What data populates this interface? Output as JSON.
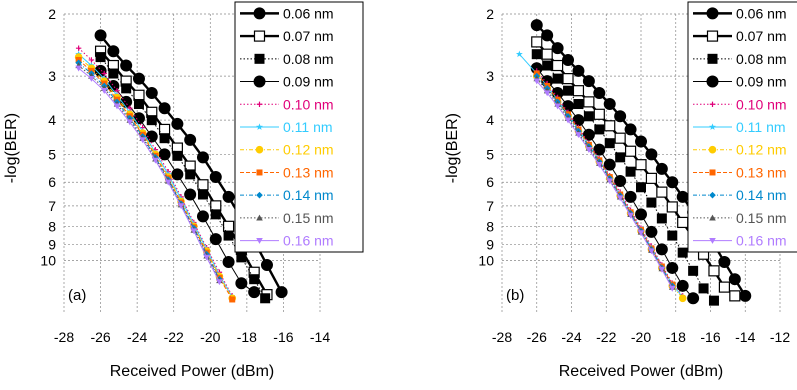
{
  "chart_data": [
    {
      "type": "line",
      "panel_label": "(a)",
      "xlabel": "Received Power (dBm)",
      "ylabel": "-log(BER)",
      "xlim": [
        -28,
        -14
      ],
      "x_ticks": [
        -28,
        -26,
        -24,
        -22,
        -20,
        -18,
        -16,
        -14
      ],
      "y_ticks": [
        2,
        3,
        4,
        5,
        6,
        7,
        8,
        9,
        10
      ],
      "y_scale": "log(-log(BER)), inverted",
      "ylim": [
        2,
        14
      ],
      "grid": true,
      "legend_position": "top-right",
      "series": [
        {
          "name": "0.06 nm",
          "color": "#000000",
          "marker": "circle-filled",
          "line": "solid-bold",
          "x": [
            -26,
            -25.3,
            -24.6,
            -23.9,
            -23.2,
            -22.5,
            -21.8,
            -21.1,
            -20.4,
            -19.7,
            -19.0,
            -18.3,
            -17.6,
            -16.9,
            -16.1
          ],
          "y": [
            2.3,
            2.55,
            2.8,
            3.05,
            3.35,
            3.7,
            4.1,
            4.55,
            5.1,
            5.8,
            6.6,
            7.6,
            8.8,
            10.3,
            12.3
          ]
        },
        {
          "name": "0.07 nm",
          "color": "#000000",
          "marker": "square-open",
          "line": "solid-bold",
          "x": [
            -26,
            -25.3,
            -24.6,
            -23.9,
            -23.2,
            -22.5,
            -21.8,
            -21.1,
            -20.4,
            -19.7,
            -19.0,
            -18.3,
            -17.6,
            -16.9
          ],
          "y": [
            2.55,
            2.8,
            3.1,
            3.4,
            3.8,
            4.25,
            4.8,
            5.4,
            6.1,
            7.0,
            8.0,
            9.3,
            10.8,
            12.5
          ]
        },
        {
          "name": "0.08 nm",
          "color": "#000000",
          "marker": "square-filled",
          "line": "dotted",
          "x": [
            -26,
            -25.3,
            -24.6,
            -23.9,
            -23.2,
            -22.5,
            -21.8,
            -21.1,
            -20.4,
            -19.7,
            -19.0,
            -18.3,
            -17.6,
            -17.0
          ],
          "y": [
            2.65,
            2.95,
            3.25,
            3.6,
            4.0,
            4.5,
            5.05,
            5.7,
            6.5,
            7.4,
            8.5,
            9.8,
            11.3,
            12.8
          ]
        },
        {
          "name": "0.09 nm",
          "color": "#000000",
          "marker": "circle-filled",
          "line": "solid-thin",
          "x": [
            -26,
            -25.3,
            -24.6,
            -23.9,
            -23.2,
            -22.5,
            -21.8,
            -21.1,
            -20.4,
            -19.7,
            -19.0,
            -18.3,
            -17.6
          ],
          "y": [
            2.9,
            3.2,
            3.55,
            3.95,
            4.45,
            5.0,
            5.7,
            6.5,
            7.5,
            8.7,
            10.1,
            11.6,
            12.3
          ]
        },
        {
          "name": "0.10 nm",
          "color": "#e0007a",
          "marker": "plus",
          "line": "dotted",
          "x": [
            -27.2,
            -26.5,
            -25.8,
            -25.1,
            -24.4,
            -23.7,
            -23.0,
            -22.3,
            -21.6,
            -20.9,
            -20.2,
            -19.5,
            -18.8
          ],
          "y": [
            2.5,
            2.7,
            2.95,
            3.3,
            3.7,
            4.2,
            4.85,
            5.6,
            6.6,
            7.8,
            9.2,
            10.8,
            12.6
          ]
        },
        {
          "name": "0.11 nm",
          "color": "#33ccff",
          "marker": "star",
          "line": "solid-thin",
          "x": [
            -27.2,
            -26.5,
            -25.8,
            -25.1,
            -24.4,
            -23.7,
            -23.0,
            -22.3,
            -21.6,
            -20.9,
            -20.2,
            -19.5,
            -18.8
          ],
          "y": [
            2.6,
            2.8,
            3.05,
            3.4,
            3.8,
            4.3,
            4.95,
            5.7,
            6.7,
            7.9,
            9.3,
            11.0,
            12.7
          ]
        },
        {
          "name": "0.12 nm",
          "color": "#ffcc00",
          "marker": "circle-filled",
          "line": "dashdot",
          "x": [
            -27.2,
            -26.5,
            -25.8,
            -25.1,
            -24.4,
            -23.7,
            -23.0,
            -22.3,
            -21.6,
            -20.9,
            -20.2,
            -19.5,
            -18.8
          ],
          "y": [
            2.65,
            2.85,
            3.1,
            3.45,
            3.85,
            4.35,
            5.0,
            5.8,
            6.8,
            8.0,
            9.4,
            11.1,
            12.8
          ]
        },
        {
          "name": "0.13 nm",
          "color": "#ff6600",
          "marker": "square-filled",
          "line": "dashed",
          "x": [
            -27.2,
            -26.5,
            -25.8,
            -25.1,
            -24.4,
            -23.7,
            -23.0,
            -22.3,
            -21.6,
            -20.9,
            -20.2,
            -19.5,
            -18.8
          ],
          "y": [
            2.7,
            2.9,
            3.15,
            3.5,
            3.9,
            4.4,
            5.05,
            5.85,
            6.85,
            8.05,
            9.5,
            11.2,
            12.9
          ]
        },
        {
          "name": "0.14 nm",
          "color": "#0088cc",
          "marker": "diamond",
          "line": "dashdot",
          "x": [
            -27.2,
            -26.5,
            -25.8,
            -25.1,
            -24.4,
            -23.7,
            -23.0,
            -22.3,
            -21.6,
            -20.9,
            -20.2,
            -19.5
          ],
          "y": [
            2.75,
            2.95,
            3.2,
            3.55,
            3.95,
            4.45,
            5.1,
            5.9,
            6.9,
            8.1,
            9.6,
            11.3
          ]
        },
        {
          "name": "0.15 nm",
          "color": "#555555",
          "marker": "triangle-up",
          "line": "dotted",
          "x": [
            -27.2,
            -26.5,
            -25.8,
            -25.1,
            -24.4,
            -23.7,
            -23.0,
            -22.3,
            -21.6,
            -20.9,
            -20.2,
            -19.5
          ],
          "y": [
            2.8,
            3.0,
            3.25,
            3.6,
            4.0,
            4.5,
            5.15,
            5.95,
            6.95,
            8.2,
            9.7,
            11.4
          ]
        },
        {
          "name": "0.16 nm",
          "color": "#b07cff",
          "marker": "triangle-down",
          "line": "solid-thin",
          "x": [
            -27.2,
            -26.5,
            -25.8,
            -25.1,
            -24.4,
            -23.7,
            -23.0,
            -22.3,
            -21.6,
            -20.9,
            -20.2,
            -19.5
          ],
          "y": [
            2.85,
            3.05,
            3.3,
            3.65,
            4.05,
            4.55,
            5.2,
            6.0,
            7.0,
            8.25,
            9.8,
            11.5
          ]
        }
      ]
    },
    {
      "type": "line",
      "panel_label": "(b)",
      "xlabel": "Received Power (dBm)",
      "ylabel": "-log(BER)",
      "xlim": [
        -28,
        -12
      ],
      "x_ticks": [
        -28,
        -26,
        -24,
        -22,
        -20,
        -18,
        -16,
        -14,
        -12
      ],
      "y_ticks": [
        2,
        3,
        4,
        5,
        6,
        7,
        8,
        9,
        10
      ],
      "y_scale": "log(-log(BER)), inverted",
      "ylim": [
        2,
        14
      ],
      "grid": true,
      "legend_position": "top-right",
      "series": [
        {
          "name": "0.06 nm",
          "color": "#000000",
          "marker": "circle-filled",
          "line": "solid-bold",
          "x": [
            -26,
            -25.4,
            -24.8,
            -24.2,
            -23.6,
            -23.0,
            -22.4,
            -21.8,
            -21.2,
            -20.6,
            -20.0,
            -19.4,
            -18.8,
            -18.2,
            -17.6,
            -17.0,
            -16.4,
            -15.8,
            -15.2,
            -14.6,
            -14.0
          ],
          "y": [
            2.15,
            2.3,
            2.5,
            2.7,
            2.9,
            3.1,
            3.35,
            3.6,
            3.9,
            4.25,
            4.6,
            5.0,
            5.5,
            6.0,
            6.6,
            7.3,
            8.1,
            9.0,
            10.1,
            11.3,
            12.6
          ]
        },
        {
          "name": "0.07 nm",
          "color": "#000000",
          "marker": "square-open",
          "line": "solid-bold",
          "x": [
            -26,
            -25.4,
            -24.8,
            -24.2,
            -23.6,
            -23.0,
            -22.4,
            -21.8,
            -21.2,
            -20.6,
            -20.0,
            -19.4,
            -18.8,
            -18.2,
            -17.6,
            -17.0,
            -16.4,
            -15.8,
            -15.2,
            -14.6
          ],
          "y": [
            2.4,
            2.6,
            2.8,
            3.05,
            3.3,
            3.55,
            3.85,
            4.15,
            4.5,
            4.9,
            5.35,
            5.85,
            6.4,
            7.05,
            7.8,
            8.6,
            9.6,
            10.7,
            11.9,
            12.6
          ]
        },
        {
          "name": "0.08 nm",
          "color": "#000000",
          "marker": "square-filled",
          "line": "dotted",
          "x": [
            -26,
            -25.4,
            -24.8,
            -24.2,
            -23.6,
            -23.0,
            -22.4,
            -21.8,
            -21.2,
            -20.6,
            -20.0,
            -19.4,
            -18.8,
            -18.2,
            -17.6,
            -17.0,
            -16.4,
            -15.8
          ],
          "y": [
            2.6,
            2.8,
            3.05,
            3.3,
            3.6,
            3.9,
            4.25,
            4.65,
            5.1,
            5.6,
            6.2,
            6.85,
            7.6,
            8.5,
            9.5,
            10.7,
            12.0,
            13.0
          ]
        },
        {
          "name": "0.09 nm",
          "color": "#000000",
          "marker": "circle-filled",
          "line": "solid-thin",
          "x": [
            -26,
            -25.4,
            -24.8,
            -24.2,
            -23.6,
            -23.0,
            -22.4,
            -21.8,
            -21.2,
            -20.6,
            -20.0,
            -19.4,
            -18.8,
            -18.2,
            -17.6,
            -17.0
          ],
          "y": [
            2.85,
            3.1,
            3.35,
            3.65,
            4.0,
            4.4,
            4.85,
            5.35,
            5.95,
            6.6,
            7.4,
            8.3,
            9.3,
            10.5,
            11.8,
            12.8
          ]
        },
        {
          "name": "0.10 nm",
          "color": "#e0007a",
          "marker": "plus",
          "line": "dotted",
          "x": [
            -26,
            -25.4,
            -24.8,
            -24.2,
            -23.6,
            -23.0,
            -22.4,
            -21.8,
            -21.2,
            -20.6,
            -20.0,
            -19.4,
            -18.8,
            -18.2,
            -17.6
          ],
          "y": [
            2.9,
            3.15,
            3.45,
            3.8,
            4.2,
            4.65,
            5.15,
            5.75,
            6.4,
            7.2,
            8.1,
            9.1,
            10.3,
            11.6,
            12.6
          ]
        },
        {
          "name": "0.11 nm",
          "color": "#33ccff",
          "marker": "star",
          "line": "solid-thin",
          "x": [
            -27,
            -26,
            -25.4,
            -24.8,
            -24.2,
            -23.6,
            -23.0,
            -22.4,
            -21.8,
            -21.2,
            -20.6,
            -20.0,
            -19.4,
            -18.8,
            -18.2,
            -17.6
          ],
          "y": [
            2.6,
            2.95,
            3.2,
            3.5,
            3.85,
            4.25,
            4.7,
            5.2,
            5.8,
            6.5,
            7.3,
            8.2,
            9.2,
            10.4,
            11.7,
            12.7
          ]
        },
        {
          "name": "0.12 nm",
          "color": "#ffcc00",
          "marker": "circle-filled",
          "line": "dashdot",
          "x": [
            -26,
            -25.4,
            -24.8,
            -24.2,
            -23.6,
            -23.0,
            -22.4,
            -21.8,
            -21.2,
            -20.6,
            -20.0,
            -19.4,
            -18.8,
            -18.2,
            -17.6
          ],
          "y": [
            3.0,
            3.25,
            3.55,
            3.9,
            4.3,
            4.75,
            5.25,
            5.85,
            6.55,
            7.35,
            8.25,
            9.3,
            10.5,
            11.8,
            12.8
          ]
        },
        {
          "name": "0.13 nm",
          "color": "#ff6600",
          "marker": "square-filled",
          "line": "dashed",
          "x": [
            -26,
            -25.4,
            -24.8,
            -24.2,
            -23.6,
            -23.0,
            -22.4,
            -21.8,
            -21.2,
            -20.6,
            -20.0,
            -19.4,
            -18.8,
            -18.2
          ],
          "y": [
            2.95,
            3.2,
            3.5,
            3.85,
            4.25,
            4.7,
            5.2,
            5.8,
            6.5,
            7.3,
            8.2,
            9.25,
            10.4,
            11.7
          ]
        },
        {
          "name": "0.14 nm",
          "color": "#0088cc",
          "marker": "diamond",
          "line": "dashdot",
          "x": [
            -26,
            -25.4,
            -24.8,
            -24.2,
            -23.6,
            -23.0,
            -22.4,
            -21.8,
            -21.2,
            -20.6,
            -20.0,
            -19.4,
            -18.8,
            -18.2
          ],
          "y": [
            3.0,
            3.25,
            3.55,
            3.9,
            4.3,
            4.75,
            5.25,
            5.85,
            6.55,
            7.35,
            8.25,
            9.3,
            10.5,
            11.8
          ]
        },
        {
          "name": "0.15 nm",
          "color": "#555555",
          "marker": "triangle-up",
          "line": "dotted",
          "x": [
            -26,
            -25.4,
            -24.8,
            -24.2,
            -23.6,
            -23.0,
            -22.4,
            -21.8,
            -21.2,
            -20.6,
            -20.0,
            -19.4,
            -18.8,
            -18.2
          ],
          "y": [
            3.05,
            3.3,
            3.6,
            3.95,
            4.35,
            4.8,
            5.3,
            5.9,
            6.6,
            7.4,
            8.3,
            9.35,
            10.55,
            11.9
          ]
        },
        {
          "name": "0.16 nm",
          "color": "#b07cff",
          "marker": "triangle-down",
          "line": "solid-thin",
          "x": [
            -26,
            -25.4,
            -24.8,
            -24.2,
            -23.6,
            -23.0,
            -22.4,
            -21.8,
            -21.2,
            -20.6,
            -20.0,
            -19.4,
            -18.8,
            -18.2
          ],
          "y": [
            3.1,
            3.35,
            3.65,
            4.0,
            4.4,
            4.85,
            5.35,
            5.95,
            6.65,
            7.45,
            8.35,
            9.4,
            10.6,
            12.0
          ]
        }
      ]
    }
  ]
}
